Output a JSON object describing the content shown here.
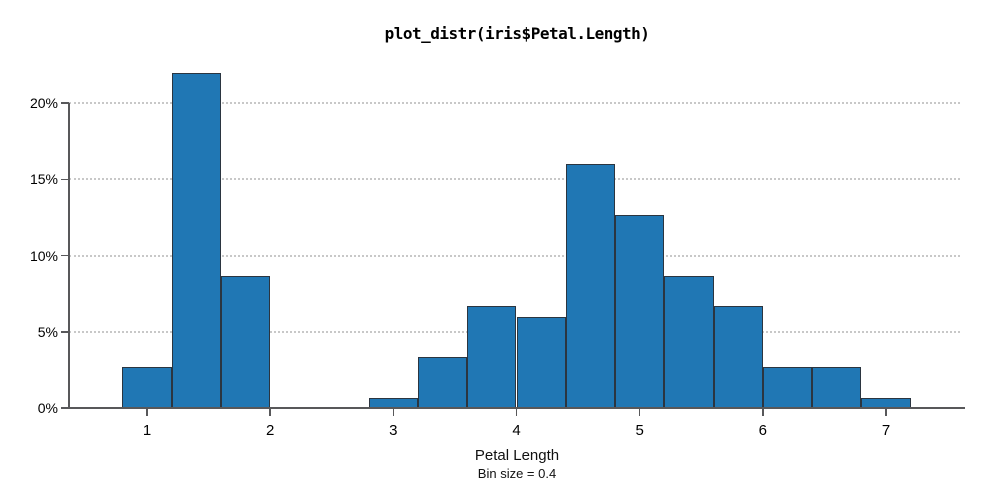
{
  "chart_data": {
    "type": "bar",
    "subtype": "histogram",
    "title": "plot_distr(iris$Petal.Length)",
    "x_axis": {
      "title": "Petal Length",
      "subtitle": "Bin size = 0.4",
      "tick_values": [
        1,
        2,
        3,
        4,
        5,
        6,
        7
      ],
      "tick_labels": [
        "1",
        "2",
        "3",
        "4",
        "5",
        "6",
        "7"
      ],
      "range": [
        0.37,
        7.64
      ]
    },
    "y_axis": {
      "tick_values": [
        0,
        5,
        10,
        15,
        20
      ],
      "tick_labels": [
        "0%",
        "5%",
        "10%",
        "15%",
        "20%"
      ],
      "unit": "percent",
      "grid": "dotted"
    },
    "bin_size": 0.4,
    "bin_edges": [
      0.8,
      1.2,
      1.6,
      2.0,
      2.4,
      2.8,
      3.2,
      3.6,
      4.0,
      4.4,
      4.8,
      5.2,
      5.6,
      6.0,
      6.4,
      6.8,
      7.2
    ],
    "values_percent": [
      2.67,
      22.0,
      8.67,
      0,
      0,
      0.67,
      3.33,
      6.67,
      6.0,
      16.0,
      12.67,
      8.67,
      6.67,
      2.67,
      2.67,
      0.67
    ],
    "colors": {
      "bar_fill": "#2077b4",
      "bar_edge": "#2b3540",
      "axis": "#58585a",
      "grid": "#c8c8c8",
      "text": "#000000"
    }
  }
}
